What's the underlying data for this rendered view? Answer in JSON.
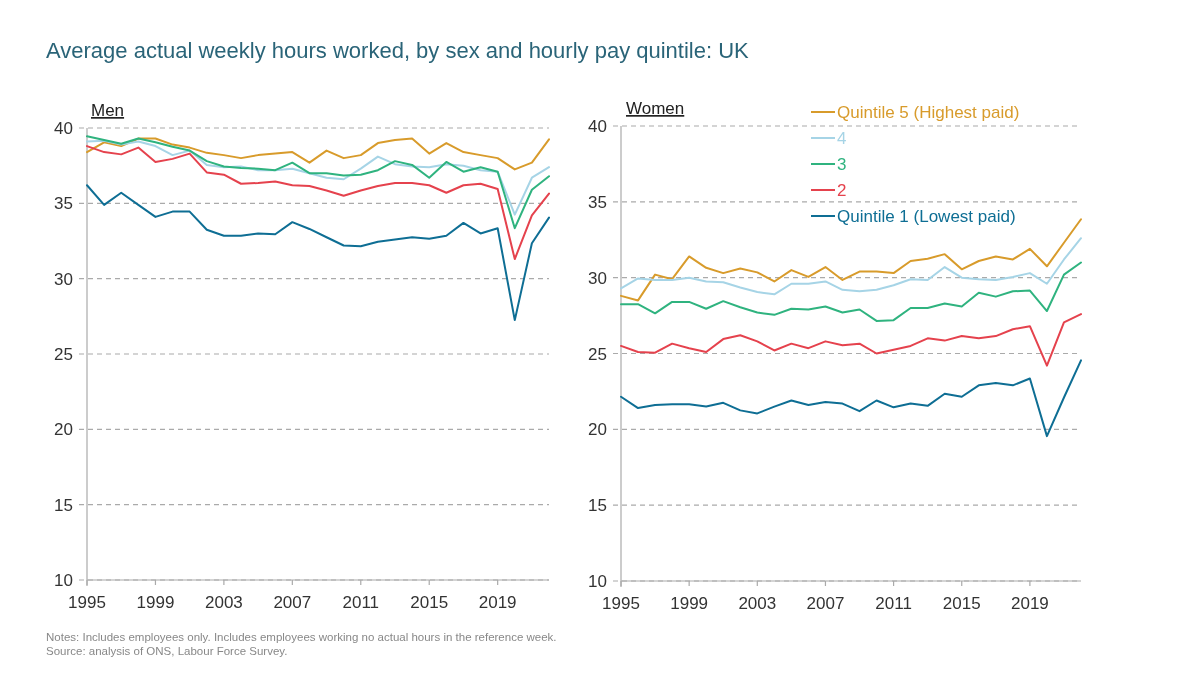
{
  "chart_data": [
    {
      "type": "line",
      "title": "Average actual weekly hours worked, by sex and hourly pay quintile: UK",
      "subtitle": "Men",
      "x": [
        1995,
        1996,
        1997,
        1998,
        1999,
        2000,
        2001,
        2002,
        2003,
        2004,
        2005,
        2006,
        2007,
        2008,
        2009,
        2010,
        2011,
        2012,
        2013,
        2014,
        2015,
        2016,
        2017,
        2018,
        2019,
        2020,
        2021,
        2022
      ],
      "xlim": [
        1995,
        2022
      ],
      "xticks": [
        1995,
        1999,
        2003,
        2007,
        2011,
        2015,
        2019
      ],
      "ylim": [
        10,
        40
      ],
      "yticks": [
        10,
        15,
        20,
        25,
        30,
        35,
        40
      ],
      "grid": "y",
      "legend": false,
      "annotations": [
        "Notes: Includes employees only. Includes employees working no actual hours in the reference week.",
        "Source: analysis of ONS, Labour Force Survey."
      ],
      "series": [
        {
          "color": "#d89b2b",
          "values": [
            38.4,
            39.05,
            38.8,
            39.3,
            39.3,
            38.9,
            38.7,
            38.35,
            38.2,
            38.0,
            38.2,
            38.3,
            38.4,
            37.7,
            38.5,
            38.0,
            38.2,
            39.0,
            39.2,
            39.3,
            38.3,
            39.0,
            38.4,
            38.2,
            38.0,
            37.25,
            37.7,
            39.25
          ]
        },
        {
          "color": "#a6d4e6",
          "values": [
            39.1,
            39.15,
            38.9,
            39.1,
            38.8,
            38.2,
            38.5,
            37.55,
            37.4,
            37.45,
            37.2,
            37.2,
            37.3,
            37.0,
            36.7,
            36.6,
            37.3,
            38.1,
            37.6,
            37.45,
            37.4,
            37.6,
            37.5,
            37.2,
            37.1,
            34.25,
            36.7,
            37.4
          ]
        },
        {
          "color": "#2fb37f",
          "values": [
            39.45,
            39.2,
            38.95,
            39.3,
            39.05,
            38.75,
            38.5,
            37.8,
            37.45,
            37.35,
            37.3,
            37.2,
            37.7,
            37.0,
            37.0,
            36.85,
            36.9,
            37.2,
            37.8,
            37.55,
            36.7,
            37.75,
            37.1,
            37.4,
            37.1,
            33.35,
            35.9,
            36.8
          ]
        },
        {
          "color": "#e5424d",
          "values": [
            38.8,
            38.4,
            38.25,
            38.7,
            37.75,
            37.95,
            38.3,
            37.05,
            36.9,
            36.3,
            36.35,
            36.45,
            36.2,
            36.15,
            35.85,
            35.5,
            35.85,
            36.15,
            36.35,
            36.35,
            36.2,
            35.7,
            36.2,
            36.3,
            35.95,
            31.3,
            34.2,
            35.65
          ]
        },
        {
          "color": "#0e6e94",
          "values": [
            36.2,
            34.9,
            35.7,
            34.9,
            34.1,
            34.45,
            34.45,
            33.25,
            32.85,
            32.85,
            33.0,
            32.95,
            33.75,
            33.3,
            32.75,
            32.2,
            32.15,
            32.45,
            32.6,
            32.75,
            32.65,
            32.85,
            33.7,
            33.0,
            33.35,
            27.25,
            32.35,
            34.05
          ]
        }
      ]
    },
    {
      "type": "line",
      "title": "Women",
      "x": [
        1995,
        1996,
        1997,
        1998,
        1999,
        2000,
        2001,
        2002,
        2003,
        2004,
        2005,
        2006,
        2007,
        2008,
        2009,
        2010,
        2011,
        2012,
        2013,
        2014,
        2015,
        2016,
        2017,
        2018,
        2019,
        2020,
        2021,
        2022
      ],
      "xlim": [
        1995,
        2022
      ],
      "xticks": [
        1995,
        1999,
        2003,
        2007,
        2011,
        2015,
        2019
      ],
      "ylim": [
        10,
        40
      ],
      "yticks": [
        10,
        15,
        20,
        25,
        30,
        35,
        40
      ],
      "grid": "y",
      "legend": "top right",
      "series": [
        {
          "name": "Quintile 5 (Highest paid)",
          "color": "#d89b2b",
          "values": [
            28.8,
            28.5,
            30.2,
            29.9,
            31.4,
            30.65,
            30.3,
            30.6,
            30.35,
            29.75,
            30.5,
            30.05,
            30.7,
            29.85,
            30.4,
            30.4,
            30.3,
            31.1,
            31.25,
            31.55,
            30.55,
            31.1,
            31.4,
            31.2,
            31.9,
            30.75,
            32.3,
            33.85
          ]
        },
        {
          "name": "4",
          "color": "#a6d4e6",
          "values": [
            29.3,
            29.95,
            29.85,
            29.85,
            30.0,
            29.75,
            29.7,
            29.35,
            29.05,
            28.9,
            29.6,
            29.6,
            29.75,
            29.2,
            29.1,
            29.2,
            29.5,
            29.9,
            29.85,
            30.7,
            30.0,
            29.9,
            29.85,
            30.05,
            30.3,
            29.6,
            31.2,
            32.6
          ]
        },
        {
          "name": "3",
          "color": "#2fb37f",
          "values": [
            28.25,
            28.25,
            27.65,
            28.4,
            28.4,
            27.95,
            28.45,
            28.05,
            27.7,
            27.55,
            27.95,
            27.9,
            28.1,
            27.7,
            27.9,
            27.15,
            27.2,
            28.0,
            28.0,
            28.3,
            28.1,
            29.0,
            28.75,
            29.1,
            29.15,
            27.8,
            30.2,
            31.0
          ]
        },
        {
          "name": "2",
          "color": "#e5424d",
          "values": [
            25.5,
            25.1,
            25.05,
            25.65,
            25.35,
            25.1,
            25.95,
            26.2,
            25.8,
            25.2,
            25.65,
            25.35,
            25.8,
            25.55,
            25.65,
            25.0,
            25.25,
            25.5,
            26.0,
            25.85,
            26.15,
            26.0,
            26.15,
            26.6,
            26.8,
            24.2,
            27.05,
            27.6
          ]
        },
        {
          "name": "Quintile 1 (Lowest paid)",
          "color": "#0e6e94",
          "values": [
            22.15,
            21.4,
            21.6,
            21.65,
            21.65,
            21.5,
            21.75,
            21.25,
            21.05,
            21.5,
            21.9,
            21.6,
            21.8,
            21.7,
            21.2,
            21.9,
            21.45,
            21.7,
            21.55,
            22.35,
            22.15,
            22.9,
            23.05,
            22.9,
            23.35,
            19.55,
            22.1,
            24.55
          ]
        }
      ]
    }
  ]
}
